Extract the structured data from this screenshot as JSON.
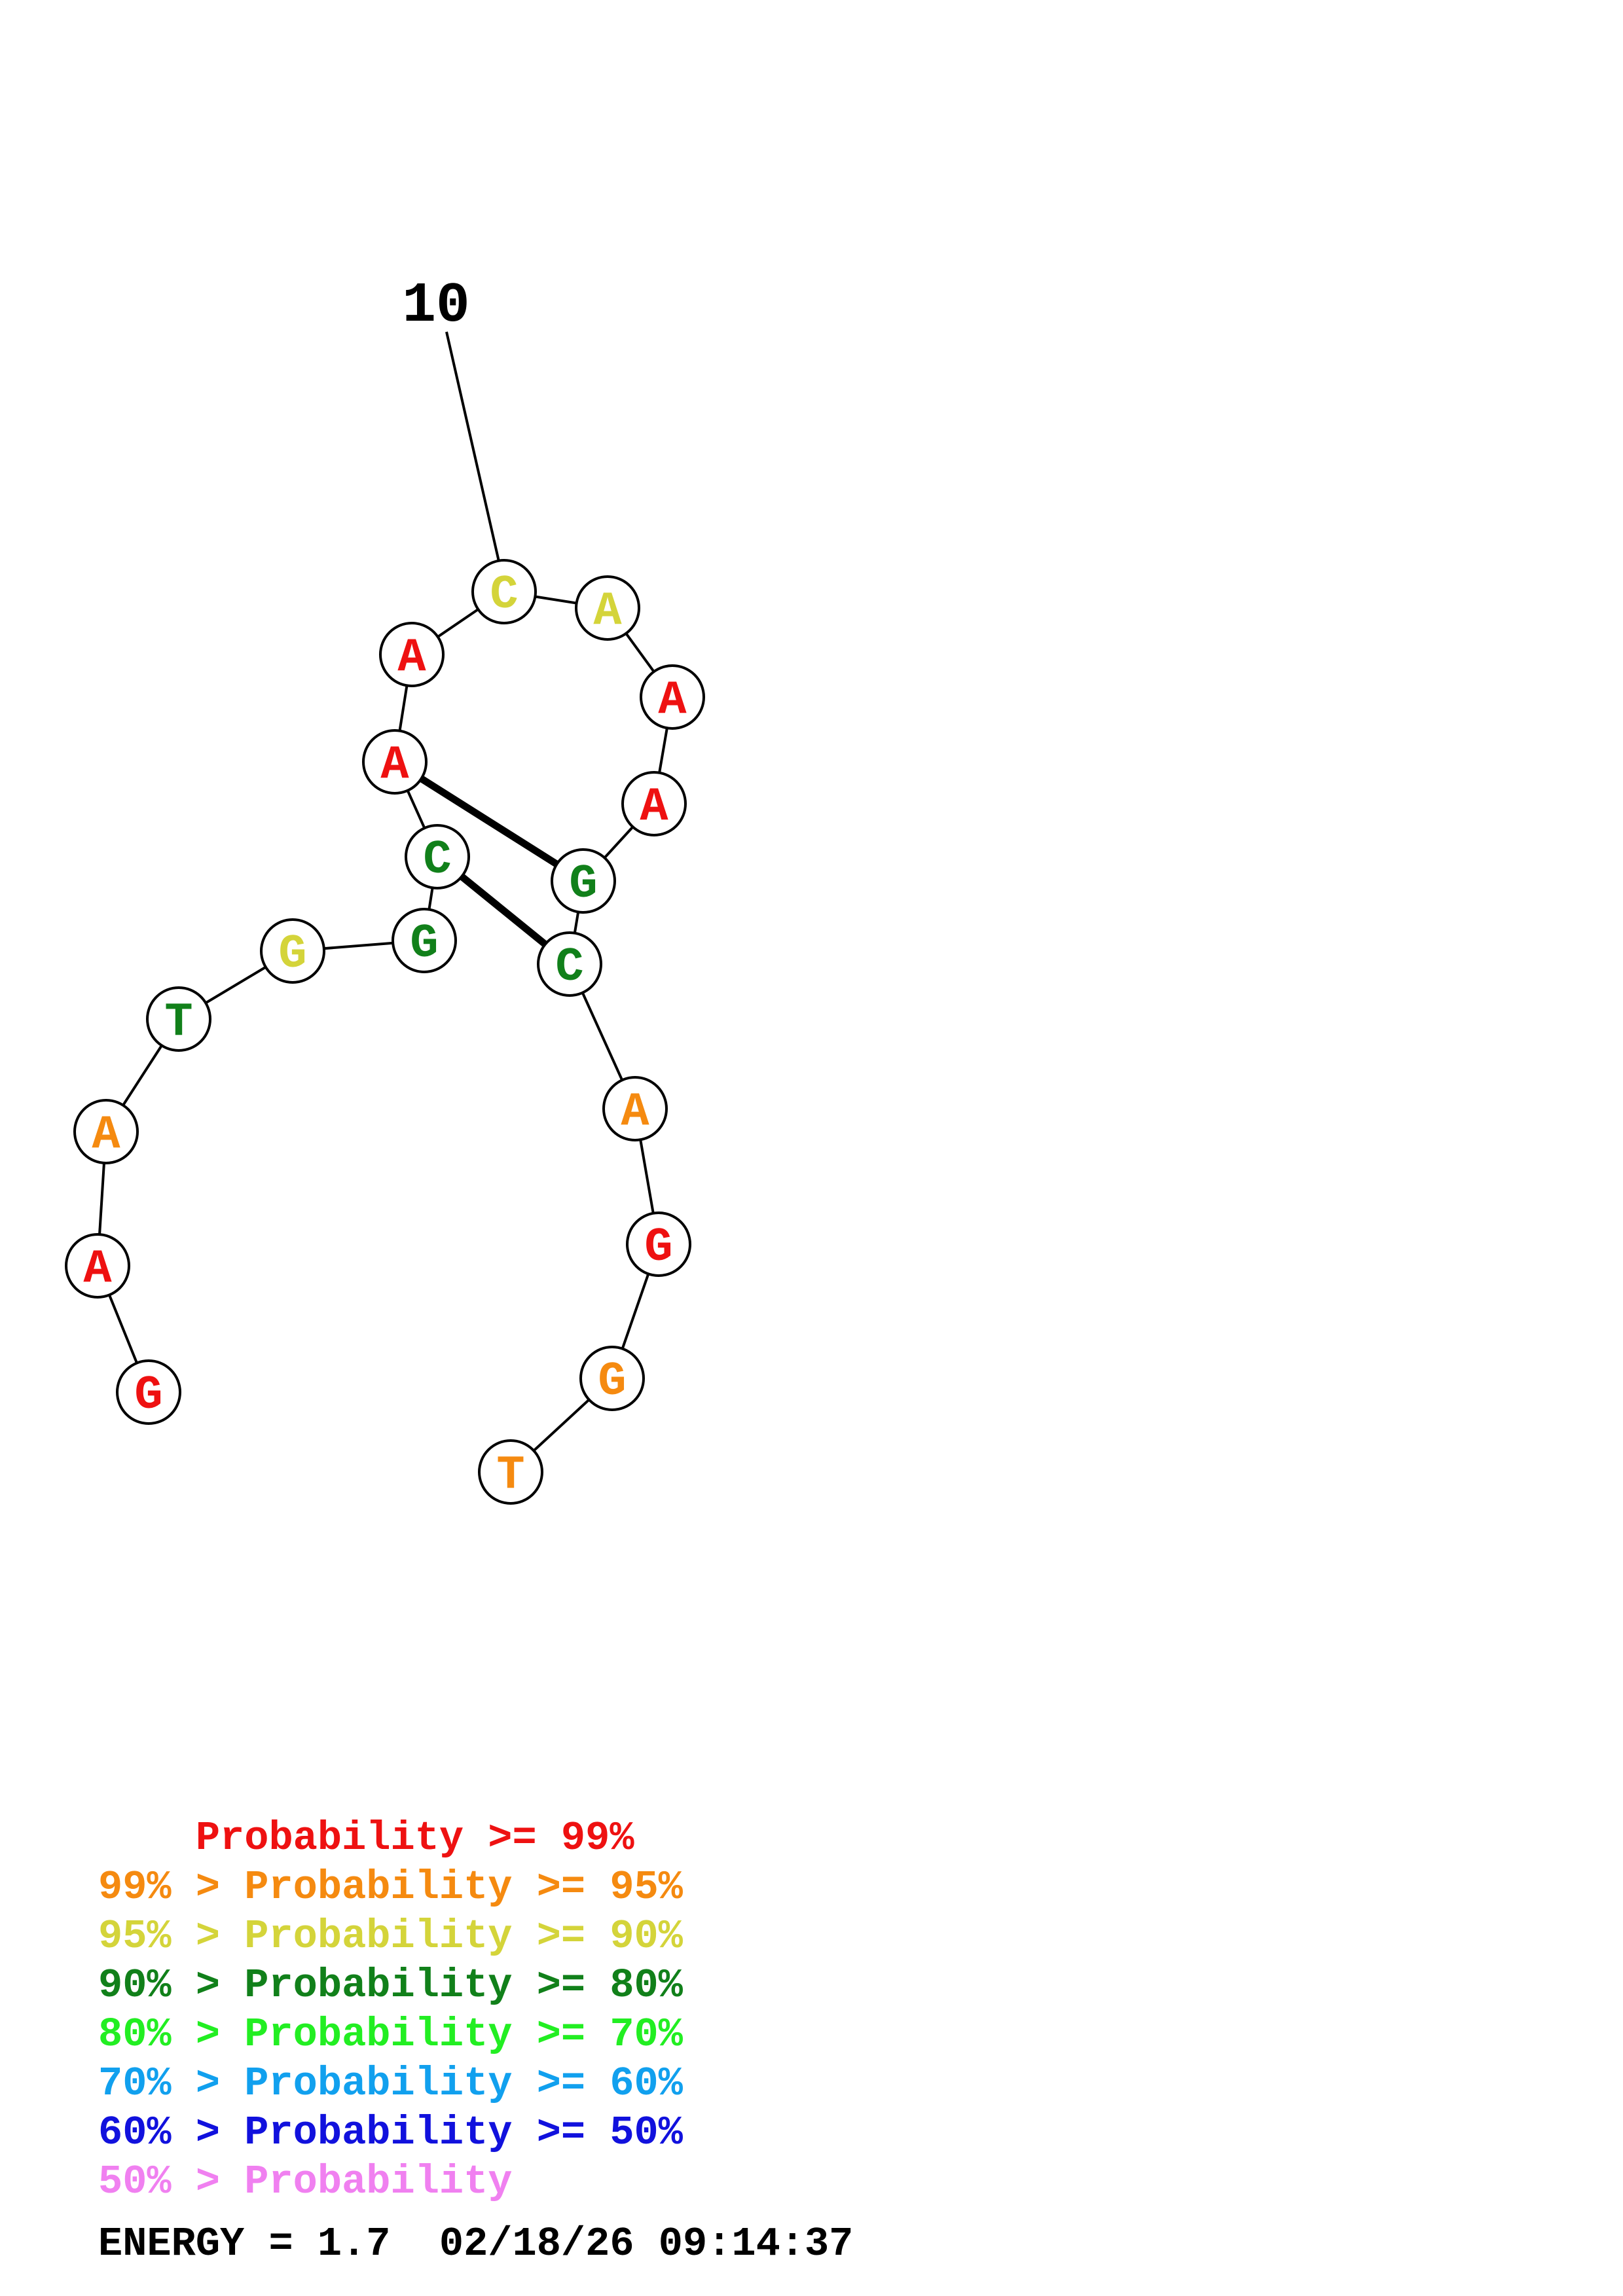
{
  "structure": {
    "position_label": "10",
    "bases": [
      {
        "letter": "G",
        "color": "#ee1111"
      },
      {
        "letter": "A",
        "color": "#ee1111"
      },
      {
        "letter": "A",
        "color": "#f58a10"
      },
      {
        "letter": "T",
        "color": "#11801a"
      },
      {
        "letter": "G",
        "color": "#d4d43a"
      },
      {
        "letter": "G",
        "color": "#11801a"
      },
      {
        "letter": "C",
        "color": "#11801a"
      },
      {
        "letter": "A",
        "color": "#ee1111"
      },
      {
        "letter": "A",
        "color": "#ee1111"
      },
      {
        "letter": "C",
        "color": "#d4d43a"
      },
      {
        "letter": "A",
        "color": "#d4d43a"
      },
      {
        "letter": "A",
        "color": "#ee1111"
      },
      {
        "letter": "A",
        "color": "#ee1111"
      },
      {
        "letter": "G",
        "color": "#11801a"
      },
      {
        "letter": "C",
        "color": "#11801a"
      },
      {
        "letter": "A",
        "color": "#f58a10"
      },
      {
        "letter": "G",
        "color": "#ee1111"
      },
      {
        "letter": "G",
        "color": "#f58a10"
      },
      {
        "letter": "T",
        "color": "#f58a10"
      }
    ],
    "pairs": [
      [
        6,
        14
      ],
      [
        7,
        13
      ]
    ]
  },
  "legend": [
    {
      "prefix": "    ",
      "text": "Probability >= 99%",
      "color": "#ee1111"
    },
    {
      "prefix": "99% > ",
      "text": "Probability >= 95%",
      "color": "#f58a10"
    },
    {
      "prefix": "95% > ",
      "text": "Probability >= 90%",
      "color": "#d4d43a"
    },
    {
      "prefix": "90% > ",
      "text": "Probability >= 80%",
      "color": "#11801a"
    },
    {
      "prefix": "80% > ",
      "text": "Probability >= 70%",
      "color": "#22ee22"
    },
    {
      "prefix": "70% > ",
      "text": "Probability >= 60%",
      "color": "#11a0ee"
    },
    {
      "prefix": "60% > ",
      "text": "Probability >= 50%",
      "color": "#1111dd"
    },
    {
      "prefix": "50% > ",
      "text": "Probability",
      "color": "#f080f0"
    }
  ],
  "energy_line": "ENERGY = 1.7  02/18/26 09:14:37"
}
